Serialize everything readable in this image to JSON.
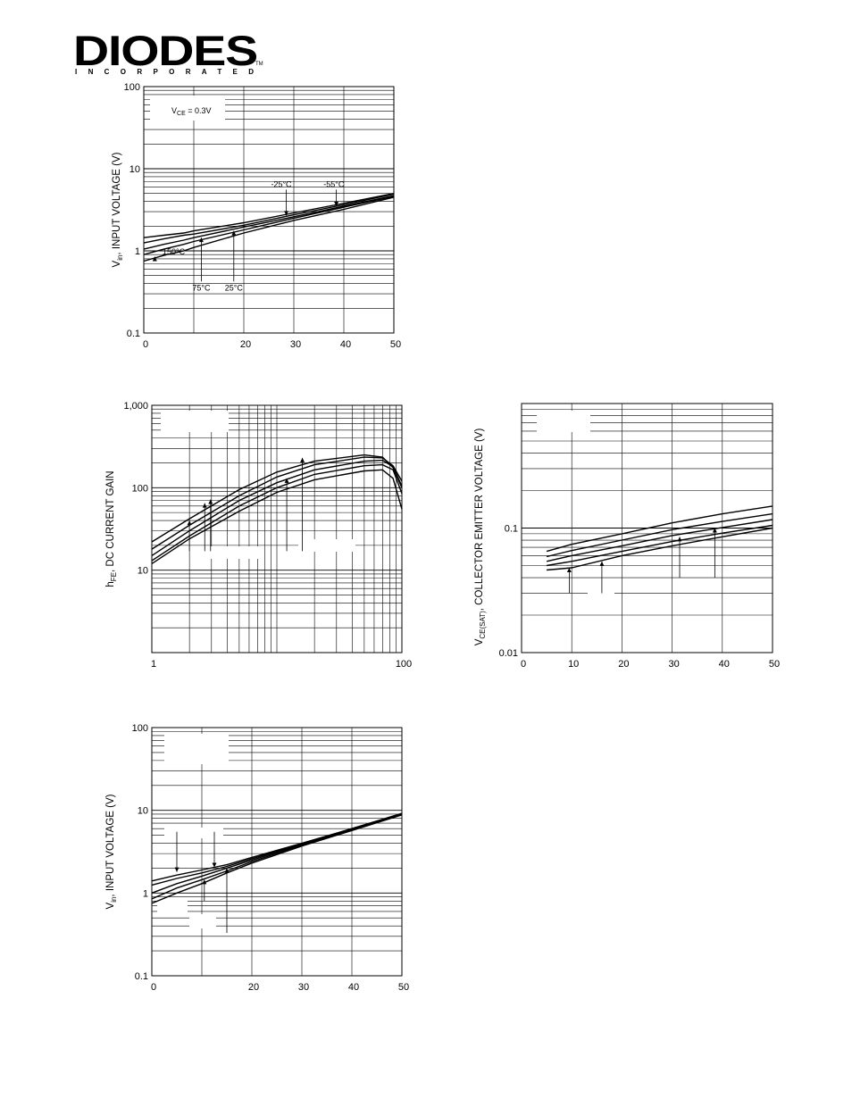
{
  "logo": {
    "name": "DIODES",
    "sub": "INCORPORATED",
    "tm": "TM"
  },
  "chart_data": [
    {
      "type": "line",
      "ylabel_main": "V",
      "ylabel_sub": "in",
      "ylabel_rest": ", INPUT VOLTAGE (V)",
      "yscale": "log",
      "ylim": [
        0.1,
        100
      ],
      "y_ticks": [
        "0.1",
        "1",
        "10",
        "100"
      ],
      "xlim": [
        0,
        50
      ],
      "x_ticks": [
        {
          "v": 0,
          "t": "0"
        },
        {
          "v": 20,
          "t": "20"
        },
        {
          "v": 30,
          "t": "30"
        },
        {
          "v": 40,
          "t": "40"
        },
        {
          "v": 50,
          "t": "50"
        }
      ],
      "condition_main": "V",
      "condition_sub": "CE",
      "condition_rest": " = 0.3V",
      "series": [
        {
          "x": [
            0,
            4,
            8,
            10,
            20,
            30,
            40,
            50
          ],
          "y": [
            1.45,
            1.55,
            1.65,
            1.75,
            2.2,
            2.9,
            3.8,
            5.0
          ]
        },
        {
          "x": [
            0,
            4,
            8,
            10,
            20,
            30,
            40,
            50
          ],
          "y": [
            1.25,
            1.4,
            1.55,
            1.6,
            2.05,
            2.75,
            3.65,
            4.9
          ]
        },
        {
          "x": [
            0,
            4,
            8,
            10,
            20,
            30,
            40,
            50
          ],
          "y": [
            1.05,
            1.2,
            1.35,
            1.45,
            1.95,
            2.6,
            3.5,
            4.7
          ]
        },
        {
          "x": [
            0,
            4,
            8,
            10,
            20,
            30,
            40,
            50
          ],
          "y": [
            0.9,
            1.05,
            1.2,
            1.3,
            1.8,
            2.5,
            3.4,
            4.6
          ]
        },
        {
          "x": [
            0,
            4,
            8,
            10,
            20,
            30,
            40,
            50
          ],
          "y": [
            0.75,
            0.88,
            1.0,
            1.1,
            1.65,
            2.35,
            3.2,
            4.5
          ]
        }
      ],
      "annotations": [
        {
          "text": "-25°C",
          "x": 27.5,
          "y": 6.0,
          "ax": 28.5,
          "ay": 2.7
        },
        {
          "text": "-55°C",
          "x": 38,
          "y": 6.0,
          "ax": 38.5,
          "ay": 3.5
        },
        {
          "text": "150°C",
          "x": 6,
          "y": 0.9,
          "ax": 2.2,
          "ay": 0.85
        },
        {
          "text": "75°C",
          "x": 11.5,
          "y": 0.33,
          "ax": 11.5,
          "ay": 1.45
        },
        {
          "text": "25°C",
          "x": 18,
          "y": 0.33,
          "ax": 18,
          "ay": 1.75
        }
      ]
    },
    {
      "type": "line",
      "ylabel_main": "h",
      "ylabel_sub": "FE",
      "ylabel_rest": ", DC CURRENT GAIN",
      "xscale": "log",
      "yscale": "log",
      "xlim": [
        1,
        100
      ],
      "ylim": [
        1,
        1000
      ],
      "x_ticks": [
        {
          "v": 1,
          "t": "1"
        },
        {
          "v": 100,
          "t": "100"
        }
      ],
      "y_ticks": [
        "10",
        "100",
        "1,000"
      ],
      "series": [
        {
          "x": [
            1,
            2,
            5,
            10,
            20,
            50,
            70,
            85,
            100
          ],
          "y": [
            22,
            42,
            95,
            155,
            210,
            250,
            235,
            175,
            100
          ]
        },
        {
          "x": [
            1,
            2,
            5,
            10,
            20,
            50,
            70,
            85,
            100
          ],
          "y": [
            18,
            35,
            80,
            135,
            190,
            235,
            230,
            185,
            120
          ]
        },
        {
          "x": [
            1,
            2,
            5,
            10,
            20,
            50,
            70,
            85,
            100
          ],
          "y": [
            15,
            30,
            70,
            115,
            165,
            210,
            215,
            180,
            105
          ]
        },
        {
          "x": [
            1,
            2,
            5,
            10,
            20,
            50,
            70,
            85,
            100
          ],
          "y": [
            13,
            26,
            60,
            100,
            145,
            185,
            190,
            165,
            85
          ]
        },
        {
          "x": [
            1,
            2,
            5,
            10,
            20,
            50,
            70,
            85,
            100
          ],
          "y": [
            12,
            24,
            52,
            88,
            125,
            160,
            165,
            130,
            55
          ]
        }
      ],
      "arrows": [
        {
          "x": 2.0,
          "y1": 17,
          "y2": 40
        },
        {
          "x": 2.65,
          "y1": 17,
          "y2": 65
        },
        {
          "x": 2.95,
          "y1": 17,
          "y2": 72
        },
        {
          "x": 12,
          "y1": 17,
          "y2": 130
        },
        {
          "x": 16,
          "y1": 17,
          "y2": 230
        }
      ]
    },
    {
      "type": "line",
      "ylabel_main": "V",
      "ylabel_sub": "CE(SAT)",
      "ylabel_rest": ", COLLECTOR EMITTER VOLTAGE (V)",
      "yscale": "log",
      "ylim": [
        0.01,
        1
      ],
      "y_ticks": [
        "0.01",
        "0.1"
      ],
      "xlim": [
        0,
        50
      ],
      "x_ticks": [
        {
          "v": 0,
          "t": "0"
        },
        {
          "v": 10,
          "t": "10"
        },
        {
          "v": 20,
          "t": "20"
        },
        {
          "v": 30,
          "t": "30"
        },
        {
          "v": 40,
          "t": "40"
        },
        {
          "v": 50,
          "t": "50"
        }
      ],
      "series": [
        {
          "x": [
            5,
            10,
            20,
            30,
            40,
            50
          ],
          "y": [
            0.065,
            0.074,
            0.09,
            0.11,
            0.13,
            0.15
          ]
        },
        {
          "x": [
            5,
            10,
            20,
            30,
            40,
            50
          ],
          "y": [
            0.059,
            0.066,
            0.08,
            0.097,
            0.113,
            0.13
          ]
        },
        {
          "x": [
            5,
            10,
            20,
            30,
            40,
            50
          ],
          "y": [
            0.054,
            0.06,
            0.072,
            0.087,
            0.101,
            0.117
          ]
        },
        {
          "x": [
            5,
            10,
            20,
            30,
            40,
            50
          ],
          "y": [
            0.05,
            0.054,
            0.065,
            0.078,
            0.091,
            0.105
          ]
        },
        {
          "x": [
            5,
            10,
            20,
            30,
            40,
            50
          ],
          "y": [
            0.046,
            0.048,
            0.06,
            0.072,
            0.085,
            0.1
          ]
        }
      ],
      "arrows": [
        {
          "x": 9.5,
          "y1": 0.03,
          "y2": 0.048
        },
        {
          "x": 16,
          "y1": 0.03,
          "y2": 0.054
        },
        {
          "x": 31.5,
          "y1": 0.04,
          "y2": 0.085
        },
        {
          "x": 38.5,
          "y1": 0.04,
          "y2": 0.1
        }
      ]
    },
    {
      "type": "line",
      "ylabel_main": "V",
      "ylabel_sub": "in",
      "ylabel_rest": ", INPUT VOLTAGE (V)",
      "yscale": "log",
      "ylim": [
        0.1,
        100
      ],
      "y_ticks": [
        "0.1",
        "1",
        "10",
        "100"
      ],
      "xlim": [
        0,
        50
      ],
      "x_ticks": [
        {
          "v": 0,
          "t": "0"
        },
        {
          "v": 20,
          "t": "20"
        },
        {
          "v": 30,
          "t": "30"
        },
        {
          "v": 40,
          "t": "40"
        },
        {
          "v": 50,
          "t": "50"
        }
      ],
      "series": [
        {
          "x": [
            0,
            5,
            10,
            15,
            20,
            30,
            40,
            50
          ],
          "y": [
            1.4,
            1.65,
            1.9,
            2.2,
            2.7,
            4.0,
            6.0,
            9.2
          ]
        },
        {
          "x": [
            0,
            5,
            10,
            15,
            20,
            30,
            40,
            50
          ],
          "y": [
            1.25,
            1.5,
            1.75,
            2.1,
            2.6,
            3.95,
            6.0,
            9.1
          ]
        },
        {
          "x": [
            0,
            5,
            10,
            15,
            20,
            30,
            40,
            50
          ],
          "y": [
            1.0,
            1.3,
            1.6,
            2.0,
            2.5,
            3.9,
            5.9,
            9.0
          ]
        },
        {
          "x": [
            0,
            5,
            10,
            15,
            20,
            30,
            40,
            50
          ],
          "y": [
            0.85,
            1.15,
            1.45,
            1.85,
            2.4,
            3.8,
            5.8,
            8.9
          ]
        },
        {
          "x": [
            0,
            5,
            10,
            15,
            20,
            30,
            40,
            50
          ],
          "y": [
            0.75,
            1.0,
            1.3,
            1.75,
            2.3,
            3.7,
            5.7,
            8.8
          ]
        }
      ],
      "arrows": [
        {
          "x": 5,
          "y1": 5.5,
          "y2": 1.8,
          "dir": "down"
        },
        {
          "x": 12.5,
          "y1": 5.5,
          "y2": 2.05,
          "dir": "down"
        },
        {
          "x": 10.5,
          "y1": 0.8,
          "y2": 1.45,
          "dir": "up"
        },
        {
          "x": 15,
          "y1": 0.33,
          "y2": 2.0,
          "dir": "up"
        }
      ]
    }
  ]
}
